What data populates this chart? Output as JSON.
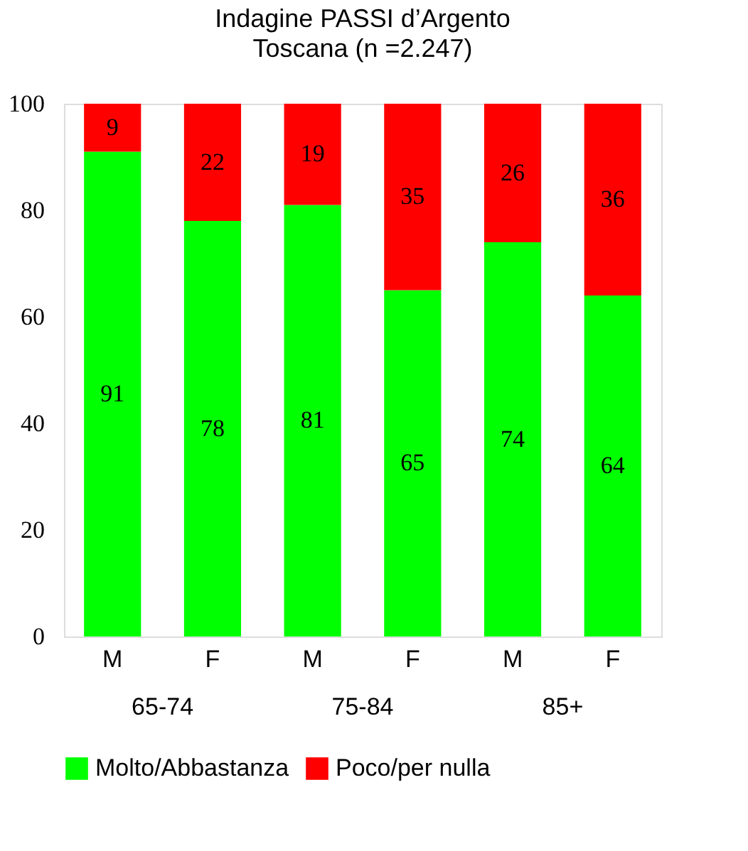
{
  "chart_data": {
    "type": "bar",
    "title": "Indagine PASSI d’Argento",
    "subtitle": "Toscana (n =2.247)",
    "categories": [
      "M",
      "F",
      "M",
      "F",
      "M",
      "F"
    ],
    "stacked": true,
    "data_labels": true,
    "legend": "bottom",
    "grid": false,
    "ylim": [
      0,
      100
    ],
    "yticks": [
      0,
      20,
      40,
      60,
      80,
      100
    ],
    "series": [
      {
        "name": "Molto/Abbastanza",
        "color": "#00ff00",
        "values": [
          91,
          78,
          81,
          65,
          74,
          64
        ]
      },
      {
        "name": "Poco/per nulla",
        "color": "#ff0000",
        "values": [
          9,
          22,
          19,
          35,
          26,
          36
        ]
      }
    ],
    "annotations": [
      "65-74",
      "75-84",
      "85+"
    ]
  }
}
